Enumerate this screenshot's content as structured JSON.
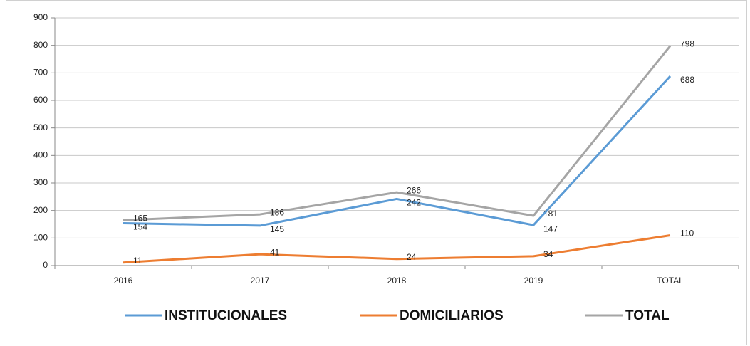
{
  "chart_data": {
    "type": "line",
    "categories": [
      "2016",
      "2017",
      "2018",
      "2019",
      "TOTAL"
    ],
    "series": [
      {
        "name": "INSTITUCIONALES",
        "color": "#5b9bd5",
        "values": [
          154,
          145,
          242,
          147,
          688
        ]
      },
      {
        "name": "DOMICILIARIOS",
        "color": "#ed7d31",
        "values": [
          11,
          41,
          24,
          34,
          110
        ]
      },
      {
        "name": "TOTAL",
        "color": "#a5a5a5",
        "values": [
          165,
          186,
          266,
          181,
          798
        ]
      }
    ],
    "ylim": [
      0,
      900
    ],
    "yticks": [
      0,
      100,
      200,
      300,
      400,
      500,
      600,
      700,
      800,
      900
    ],
    "grid": true,
    "legend": "bottom"
  }
}
